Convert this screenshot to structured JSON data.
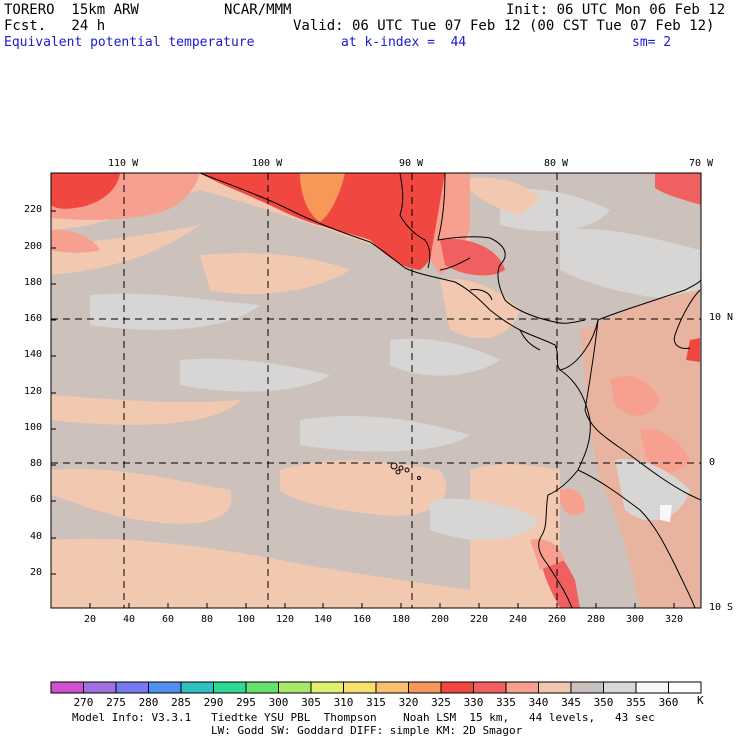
{
  "header": {
    "model": "TORERO  15km ARW",
    "org": "NCAR/MMM",
    "init": "Init: 06 UTC Mon 06 Feb 12",
    "fcst": "Fcst.   24 h",
    "valid": "Valid: 06 UTC Tue 07 Feb 12 (00 CST Tue 07 Feb 12)",
    "field": "Equivalent potential temperature",
    "level": "at k-index =  44",
    "smoothing": "sm= 2"
  },
  "axes": {
    "top_lon_labels": [
      "110 W",
      "100 W",
      "90 W",
      "80 W",
      "70 W"
    ],
    "right_lat_labels": [
      "10 N",
      "0",
      "10 S"
    ],
    "left_ticks": [
      "220",
      "200",
      "180",
      "160",
      "140",
      "120",
      "100",
      "80",
      "60",
      "40",
      "20"
    ],
    "bottom_ticks": [
      "20",
      "40",
      "60",
      "80",
      "100",
      "120",
      "140",
      "160",
      "180",
      "200",
      "220",
      "240",
      "260",
      "280",
      "300",
      "320"
    ]
  },
  "colorbar": {
    "labels": [
      "270",
      "275",
      "280",
      "285",
      "290",
      "295",
      "300",
      "305",
      "310",
      "315",
      "320",
      "325",
      "330",
      "335",
      "340",
      "345",
      "350",
      "355",
      "360"
    ],
    "unit": "K",
    "colors": [
      "#d050d0",
      "#a070e0",
      "#7878f0",
      "#5090f0",
      "#30c0c0",
      "#30d898",
      "#68e070",
      "#a8e868",
      "#e0f070",
      "#f8e070",
      "#f8c070",
      "#f89858",
      "#f04840",
      "#f06060",
      "#f8a090",
      "#f0c8b0",
      "#c8c0bc",
      "#d8d8d8",
      "#f8f8f8",
      "#ffffff"
    ]
  },
  "footer": {
    "line1": "Model Info: V3.3.1   Tiedtke YSU PBL  Thompson    Noah LSM  15 km,   44 levels,   43 sec",
    "line2": "LW: Godd SW: Goddard DIFF: simple KM: 2D Smagor"
  }
}
